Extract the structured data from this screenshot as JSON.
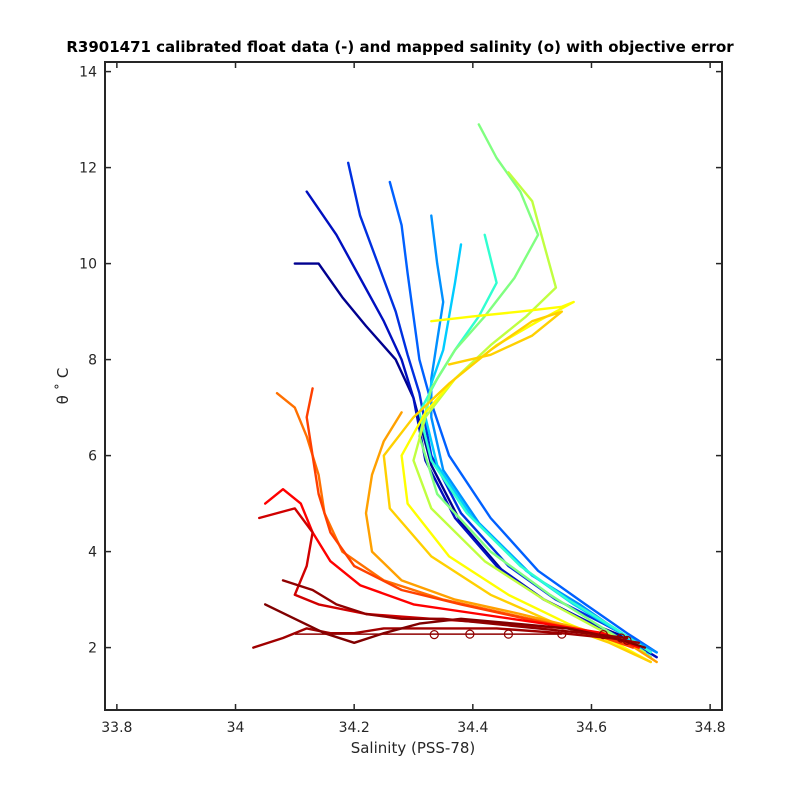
{
  "chart_data": {
    "type": "line",
    "title": "R3901471 calibrated float data (-) and mapped salinity (o) with objective error",
    "xlabel": "Salinity (PSS-78)",
    "ylabel": "θ ˚ C",
    "xlim": [
      33.78,
      34.82
    ],
    "ylim": [
      0.7,
      14.2
    ],
    "xticks": [
      "33.8",
      "34",
      "34.2",
      "34.4",
      "34.6",
      "34.8"
    ],
    "yticks": [
      "2",
      "4",
      "6",
      "8",
      "10",
      "12",
      "14"
    ],
    "grid": false,
    "legend": "none",
    "colormap": [
      "#00008f",
      "#0000ff",
      "#0080ff",
      "#00ffff",
      "#80ff80",
      "#ffff00",
      "#ff8000",
      "#ff0000",
      "#800000"
    ],
    "series": [
      {
        "color": "#00008f",
        "x": [
          34.1,
          34.14,
          34.18,
          34.22,
          34.27,
          34.3,
          34.33,
          34.38,
          34.45,
          34.52,
          34.6,
          34.66,
          34.7
        ],
        "y": [
          10.0,
          10.0,
          9.3,
          8.7,
          8.0,
          7.2,
          5.8,
          4.6,
          3.6,
          3.0,
          2.5,
          2.2,
          1.9
        ]
      },
      {
        "color": "#0010c0",
        "x": [
          34.12,
          34.17,
          34.21,
          34.25,
          34.28,
          34.3,
          34.32,
          34.37,
          34.44,
          34.52,
          34.6,
          34.67,
          34.71
        ],
        "y": [
          11.5,
          10.6,
          9.7,
          8.8,
          8.0,
          7.2,
          5.9,
          4.7,
          3.7,
          3.0,
          2.5,
          2.1,
          1.8
        ]
      },
      {
        "color": "#0030e0",
        "x": [
          34.19,
          34.21,
          34.24,
          34.27,
          34.29,
          34.31,
          34.33,
          34.38,
          34.46,
          34.54,
          34.62,
          34.68
        ],
        "y": [
          12.1,
          11.0,
          10.0,
          9.0,
          8.1,
          7.3,
          6.0,
          4.8,
          3.7,
          3.0,
          2.5,
          2.1
        ]
      },
      {
        "color": "#0060ff",
        "x": [
          34.26,
          34.28,
          34.29,
          34.3,
          34.31,
          34.33,
          34.36,
          34.43,
          34.51,
          34.59,
          34.66,
          34.71
        ],
        "y": [
          11.7,
          10.8,
          9.8,
          8.9,
          8.0,
          7.1,
          6.0,
          4.7,
          3.6,
          2.9,
          2.3,
          1.9
        ]
      },
      {
        "color": "#0090ff",
        "x": [
          34.33,
          34.34,
          34.35,
          34.34,
          34.33,
          34.33,
          34.35,
          34.41,
          34.5,
          34.58,
          34.65,
          34.71
        ],
        "y": [
          11.0,
          10.0,
          9.2,
          8.4,
          7.6,
          6.8,
          5.7,
          4.6,
          3.5,
          2.9,
          2.3,
          1.9
        ]
      },
      {
        "color": "#00ccff",
        "x": [
          34.38,
          34.37,
          34.36,
          34.35,
          34.33,
          34.32,
          34.34,
          34.4,
          34.49,
          34.57,
          34.65,
          34.7
        ],
        "y": [
          10.4,
          9.6,
          8.9,
          8.2,
          7.5,
          6.8,
          5.8,
          4.7,
          3.6,
          2.9,
          2.3,
          1.8
        ]
      },
      {
        "color": "#30ffd0",
        "x": [
          34.42,
          34.44,
          34.41,
          34.37,
          34.34,
          34.31,
          34.33,
          34.39,
          34.48,
          34.56,
          34.64,
          34.7
        ],
        "y": [
          10.6,
          9.6,
          8.9,
          8.2,
          7.6,
          6.9,
          5.9,
          4.8,
          3.7,
          3.0,
          2.4,
          1.9
        ]
      },
      {
        "color": "#80ff80",
        "x": [
          34.41,
          34.44,
          34.48,
          34.51,
          34.47,
          34.42,
          34.37,
          34.33,
          34.31,
          34.34,
          34.43,
          34.53,
          34.62,
          34.7
        ],
        "y": [
          12.9,
          12.2,
          11.5,
          10.6,
          9.7,
          8.9,
          8.2,
          7.4,
          6.4,
          5.2,
          4.0,
          3.1,
          2.4,
          1.8
        ]
      },
      {
        "color": "#c0ff40",
        "x": [
          34.46,
          34.5,
          34.52,
          34.54,
          34.49,
          34.43,
          34.37,
          34.32,
          34.3,
          34.33,
          34.42,
          34.52,
          34.61,
          34.69
        ],
        "y": [
          11.9,
          11.3,
          10.4,
          9.5,
          8.9,
          8.3,
          7.6,
          6.8,
          5.9,
          4.9,
          3.8,
          3.0,
          2.4,
          1.9
        ]
      },
      {
        "color": "#ffff00",
        "x": [
          34.33,
          34.4,
          34.48,
          34.55,
          34.57,
          34.51,
          34.44,
          34.37,
          34.32,
          34.28,
          34.29,
          34.36,
          34.46,
          34.56,
          34.64,
          34.7
        ],
        "y": [
          8.8,
          8.9,
          9.0,
          9.1,
          9.2,
          8.8,
          8.3,
          7.6,
          6.9,
          6.0,
          5.0,
          3.9,
          3.1,
          2.5,
          2.1,
          1.7
        ]
      },
      {
        "color": "#ffd000",
        "x": [
          34.36,
          34.43,
          34.5,
          34.55,
          34.5,
          34.43,
          34.36,
          34.3,
          34.25,
          34.26,
          34.33,
          34.43,
          34.54,
          34.63,
          34.7
        ],
        "y": [
          7.9,
          8.1,
          8.5,
          9.0,
          8.8,
          8.2,
          7.5,
          6.8,
          6.0,
          4.9,
          3.9,
          3.1,
          2.5,
          2.1,
          1.7
        ]
      },
      {
        "color": "#ffa000",
        "x": [
          34.28,
          34.25,
          34.23,
          34.22,
          34.23,
          34.28,
          34.37,
          34.48,
          34.58,
          34.66,
          34.71
        ],
        "y": [
          6.9,
          6.3,
          5.6,
          4.8,
          4.0,
          3.4,
          3.0,
          2.7,
          2.4,
          2.1,
          1.7
        ]
      },
      {
        "color": "#ff7000",
        "x": [
          34.07,
          34.1,
          34.12,
          34.14,
          34.15,
          34.18,
          34.25,
          34.35,
          34.46,
          34.57,
          34.65
        ],
        "y": [
          7.3,
          7.0,
          6.4,
          5.6,
          4.8,
          4.0,
          3.4,
          3.0,
          2.7,
          2.4,
          2.1
        ]
      },
      {
        "color": "#ff4000",
        "x": [
          34.13,
          34.12,
          34.13,
          34.14,
          34.16,
          34.2,
          34.28,
          34.38,
          34.49,
          34.6,
          34.67
        ],
        "y": [
          7.4,
          6.8,
          6.0,
          5.2,
          4.4,
          3.7,
          3.2,
          2.9,
          2.6,
          2.3,
          2.0
        ]
      },
      {
        "color": "#ff0000",
        "x": [
          34.05,
          34.08,
          34.11,
          34.13,
          34.16,
          34.21,
          34.3,
          34.41,
          34.52,
          34.62,
          34.68
        ],
        "y": [
          5.0,
          5.3,
          5.0,
          4.4,
          3.8,
          3.3,
          2.9,
          2.7,
          2.5,
          2.3,
          2.0
        ]
      },
      {
        "color": "#d00000",
        "x": [
          34.04,
          34.1,
          34.13,
          34.12,
          34.1,
          34.14,
          34.22,
          34.33,
          34.45,
          34.56,
          34.64
        ],
        "y": [
          4.7,
          4.9,
          4.4,
          3.7,
          3.1,
          2.9,
          2.7,
          2.6,
          2.5,
          2.4,
          2.2
        ]
      },
      {
        "color": "#a00000",
        "x": [
          34.03,
          34.08,
          34.12,
          34.16,
          34.2,
          34.25,
          34.33,
          34.44,
          34.55,
          34.63,
          34.68
        ],
        "y": [
          2.0,
          2.2,
          2.4,
          2.3,
          2.3,
          2.4,
          2.4,
          2.4,
          2.3,
          2.2,
          2.1
        ]
      },
      {
        "color": "#800000",
        "x": [
          34.05,
          34.1,
          34.15,
          34.2,
          34.25,
          34.31,
          34.38,
          34.47,
          34.56,
          34.64,
          34.69
        ],
        "y": [
          2.9,
          2.6,
          2.3,
          2.1,
          2.3,
          2.5,
          2.6,
          2.5,
          2.4,
          2.2,
          2.0
        ]
      },
      {
        "color": "#900000",
        "x": [
          34.08,
          34.13,
          34.17,
          34.22,
          34.28,
          34.35,
          34.43,
          34.51,
          34.59,
          34.66
        ],
        "y": [
          3.4,
          3.2,
          2.9,
          2.7,
          2.6,
          2.6,
          2.5,
          2.4,
          2.3,
          2.2
        ]
      }
    ],
    "mapped_salinity": {
      "color": "#8f0000",
      "x": [
        34.335,
        34.395,
        34.46,
        34.55,
        34.62,
        34.65,
        34.66
      ],
      "y": [
        2.27,
        2.28,
        2.28,
        2.28,
        2.27,
        2.2,
        2.15
      ]
    },
    "objective_error_bar": {
      "color": "#8f0000",
      "xmin": 34.1,
      "xmax": 34.55,
      "y": 2.28
    }
  }
}
